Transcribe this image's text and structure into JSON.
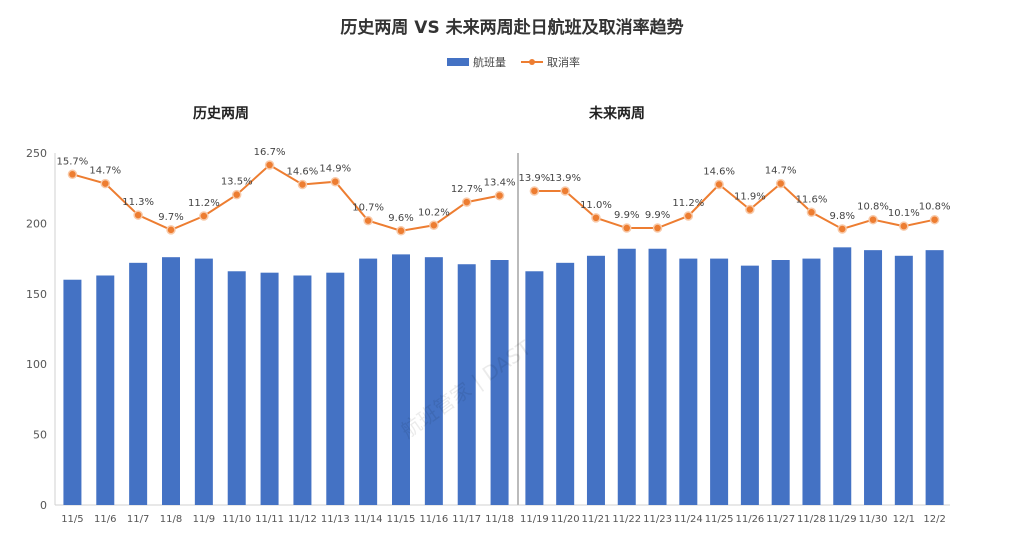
{
  "chart_data": {
    "type": "bar+line",
    "title": "历史两周 VS 未来两周赴日航班及取消率趋势",
    "legend": {
      "placement": "top",
      "entries": [
        "航班量",
        "取消率"
      ]
    },
    "colors": {
      "bars": "#4472C4",
      "line": "#ED7D31"
    },
    "grid": false,
    "y_axis": {
      "range": [
        0,
        250
      ],
      "ticks": [
        0,
        50,
        100,
        150,
        200,
        250
      ]
    },
    "y2_axis_hidden_range_percent": [
      -20,
      18
    ],
    "panels": [
      {
        "subtitle": "历史两周",
        "categories": [
          "11/5",
          "11/6",
          "11/7",
          "11/8",
          "11/9",
          "11/10",
          "11/11",
          "11/12",
          "11/13",
          "11/14",
          "11/15",
          "11/16",
          "11/17",
          "11/18"
        ],
        "series": [
          {
            "name": "航班量",
            "type": "bar",
            "values": [
              160,
              163,
              172,
              176,
              175,
              166,
              165,
              163,
              165,
              175,
              178,
              176,
              171,
              174
            ]
          },
          {
            "name": "取消率",
            "type": "line",
            "values": [
              15.7,
              14.7,
              11.3,
              9.7,
              11.2,
              13.5,
              16.7,
              14.6,
              14.9,
              10.7,
              9.6,
              10.2,
              12.7,
              13.4
            ],
            "labels": [
              "15.7%",
              "14.7%",
              "11.3%",
              "9.7%",
              "11.2%",
              "13.5%",
              "16.7%",
              "14.6%",
              "14.9%",
              "10.7%",
              "9.6%",
              "10.2%",
              "12.7%",
              "13.4%"
            ]
          }
        ]
      },
      {
        "subtitle": "未来两周",
        "categories": [
          "11/19",
          "11/20",
          "11/21",
          "11/22",
          "11/23",
          "11/24",
          "11/25",
          "11/26",
          "11/27",
          "11/28",
          "11/29",
          "11/30",
          "12/1",
          "12/2"
        ],
        "series": [
          {
            "name": "航班量",
            "type": "bar",
            "values": [
              166,
              172,
              177,
              182,
              182,
              175,
              175,
              170,
              174,
              175,
              183,
              181,
              177,
              181
            ]
          },
          {
            "name": "取消率",
            "type": "line",
            "values": [
              13.9,
              13.9,
              11.0,
              9.9,
              9.9,
              11.2,
              14.6,
              11.9,
              14.7,
              11.6,
              9.8,
              10.8,
              10.1,
              10.8
            ],
            "labels": [
              "13.9%",
              "13.9%",
              "11.0%",
              "9.9%",
              "9.9%",
              "11.2%",
              "14.6%",
              "11.9%",
              "14.7%",
              "11.6%",
              "9.8%",
              "10.8%",
              "10.1%",
              "10.8%"
            ]
          }
        ]
      }
    ],
    "watermark": "航班管家 | DAST"
  }
}
